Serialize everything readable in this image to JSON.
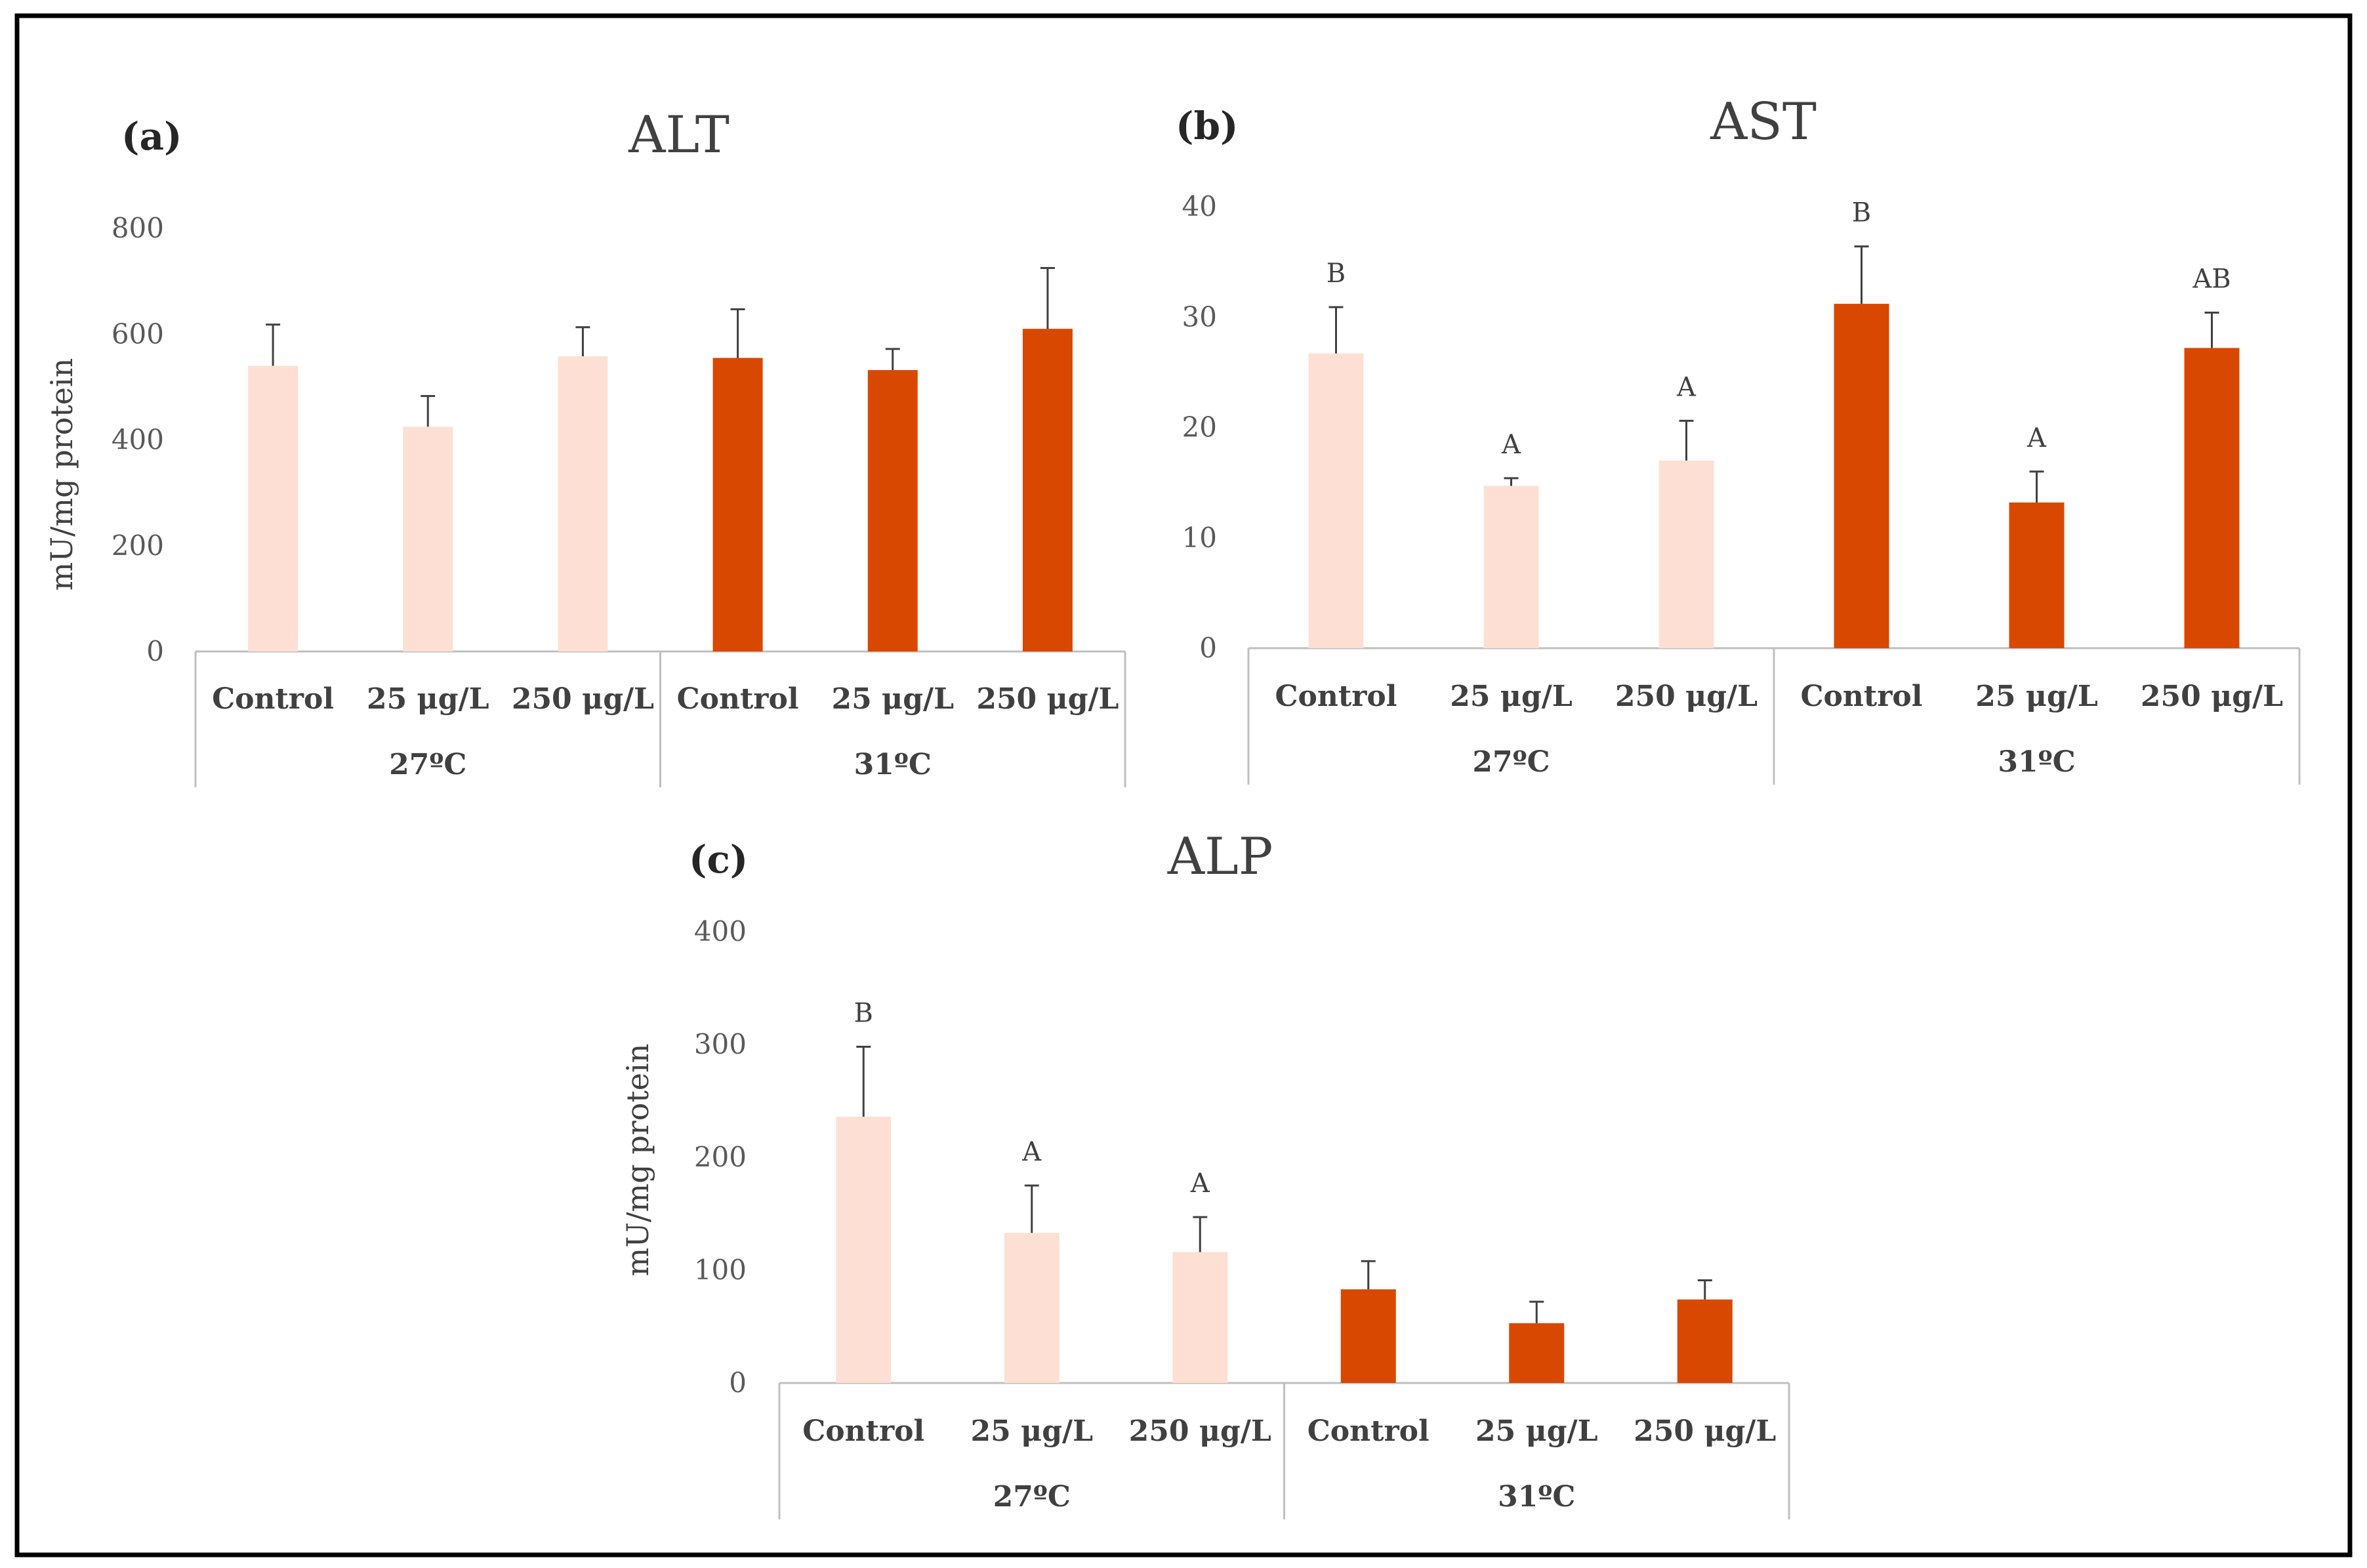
{
  "colors": {
    "frame": "#000000",
    "axis": "#bfbfbf",
    "temp_27": "#fde0d3",
    "temp_31": "#d94801",
    "error_bar": "#404040"
  },
  "chart_data": [
    {
      "panel": "(a)",
      "type": "bar",
      "title": "ALT",
      "ylabel": "mU/mg protein",
      "xlabel": "",
      "ylim": [
        0,
        800
      ],
      "yticks": [
        0,
        200,
        400,
        600,
        800
      ],
      "grid": false,
      "groups": [
        {
          "label": "27ºC",
          "categories": [
            "Control",
            "25 μg/L",
            "250 μg/L"
          ],
          "values": [
            540,
            425,
            558
          ],
          "errors": [
            78,
            58,
            55
          ],
          "sig": [
            "",
            "",
            ""
          ],
          "color_key": "temp_27"
        },
        {
          "label": "31ºC",
          "categories": [
            "Control",
            "25 μg/L",
            "250 μg/L"
          ],
          "values": [
            555,
            532,
            610
          ],
          "errors": [
            92,
            40,
            115
          ],
          "sig": [
            "",
            "",
            ""
          ],
          "color_key": "temp_31"
        }
      ]
    },
    {
      "panel": "(b)",
      "type": "bar",
      "title": "AST",
      "ylabel": "",
      "xlabel": "",
      "ylim": [
        0,
        40
      ],
      "yticks": [
        0,
        10,
        20,
        30,
        40
      ],
      "grid": false,
      "groups": [
        {
          "label": "27ºC",
          "categories": [
            "Control",
            "25 μg/L",
            "250 μg/L"
          ],
          "values": [
            26.7,
            14.7,
            17.0
          ],
          "errors": [
            4.2,
            0.7,
            3.6
          ],
          "sig": [
            "B",
            "A",
            "A"
          ],
          "color_key": "temp_27"
        },
        {
          "label": "31ºC",
          "categories": [
            "Control",
            "25 μg/L",
            "250 μg/L"
          ],
          "values": [
            31.2,
            13.2,
            27.2
          ],
          "errors": [
            5.2,
            2.8,
            3.2
          ],
          "sig": [
            "B",
            "A",
            "AB"
          ],
          "color_key": "temp_31"
        }
      ]
    },
    {
      "panel": "(c)",
      "type": "bar",
      "title": "ALP",
      "ylabel": "mU/mg protein",
      "xlabel": "",
      "ylim": [
        0,
        400
      ],
      "yticks": [
        0,
        100,
        200,
        300,
        400
      ],
      "grid": false,
      "groups": [
        {
          "label": "27ºC",
          "categories": [
            "Control",
            "25 μg/L",
            "250 μg/L"
          ],
          "values": [
            236,
            133,
            116
          ],
          "errors": [
            62,
            42,
            31
          ],
          "sig": [
            "B",
            "A",
            "A"
          ],
          "color_key": "temp_27"
        },
        {
          "label": "31ºC",
          "categories": [
            "Control",
            "25 μg/L",
            "250 μg/L"
          ],
          "values": [
            83,
            53,
            74
          ],
          "errors": [
            25,
            19,
            17
          ],
          "sig": [
            "",
            "",
            ""
          ],
          "color_key": "temp_31"
        }
      ]
    }
  ]
}
